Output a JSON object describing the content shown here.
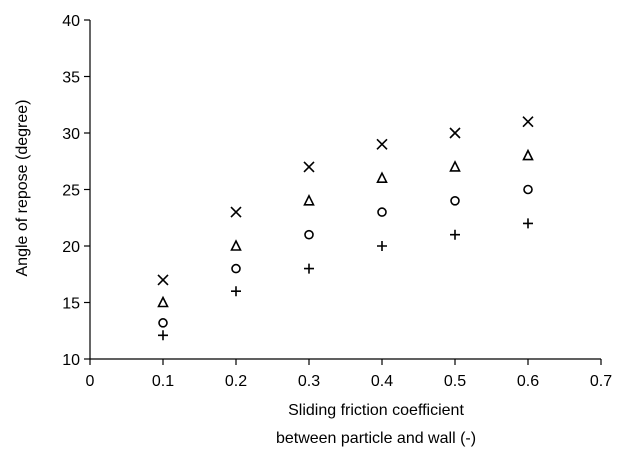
{
  "chart_data": {
    "type": "scatter",
    "title": "",
    "xlabel": [
      "Sliding friction coefficient",
      "between particle and wall (-)"
    ],
    "ylabel": "Angle of repose (degree)",
    "xlim": [
      0,
      0.7
    ],
    "ylim": [
      10,
      40
    ],
    "xticks": [
      0,
      0.1,
      0.2,
      0.3,
      0.4,
      0.5,
      0.6,
      0.7
    ],
    "xtick_labels": [
      "0",
      "0.1",
      "0.2",
      "0.3",
      "0.4",
      "0.5",
      "0.6",
      "0.7"
    ],
    "yticks": [
      10,
      15,
      20,
      25,
      30,
      35,
      40
    ],
    "ytick_labels": [
      "10",
      "15",
      "20",
      "25",
      "30",
      "35",
      "40"
    ],
    "grid": false,
    "legend": "none",
    "series": [
      {
        "marker": "x",
        "x": [
          0.1,
          0.2,
          0.3,
          0.4,
          0.5,
          0.6
        ],
        "y": [
          17,
          23,
          27,
          29,
          30,
          31
        ]
      },
      {
        "marker": "triangle",
        "x": [
          0.1,
          0.2,
          0.3,
          0.4,
          0.5,
          0.6
        ],
        "y": [
          15,
          20,
          24,
          26,
          27,
          28
        ]
      },
      {
        "marker": "circle",
        "x": [
          0.1,
          0.2,
          0.3,
          0.4,
          0.5,
          0.6
        ],
        "y": [
          13.2,
          18,
          21,
          23,
          24,
          25
        ]
      },
      {
        "marker": "plus",
        "x": [
          0.1,
          0.2,
          0.3,
          0.4,
          0.5,
          0.6
        ],
        "y": [
          12.1,
          16,
          18,
          20,
          21,
          22
        ]
      }
    ]
  }
}
